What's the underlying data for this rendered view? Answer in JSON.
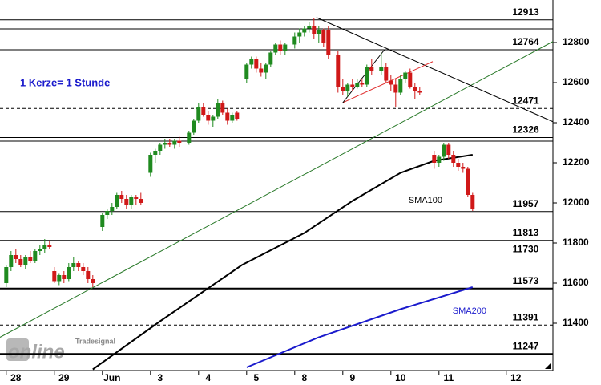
{
  "chart_data": {
    "type": "candlestick",
    "annotation": "1 Kerze= 1 Stunde",
    "watermark": [
      "Tradesignal",
      "online"
    ],
    "xlim": [
      -1.3,
      113.7
    ],
    "ylim": [
      11164,
      13012
    ],
    "xticks": [
      {
        "value": 0,
        "label": "28"
      },
      {
        "value": 10,
        "label": "29"
      },
      {
        "value": 20,
        "label": "Jun"
      },
      {
        "value": 30,
        "label": "3"
      },
      {
        "value": 40,
        "label": "4"
      },
      {
        "value": 50,
        "label": "5"
      },
      {
        "value": 60,
        "label": "8"
      },
      {
        "value": 70,
        "label": "9"
      },
      {
        "value": 80,
        "label": "10"
      },
      {
        "value": 90,
        "label": "11"
      },
      {
        "value": 104,
        "label": "12"
      }
    ],
    "yticks": [
      11400,
      11600,
      11800,
      12000,
      12200,
      12400,
      12600,
      12800
    ],
    "up_color": "#1f8a1f",
    "down_color": "#d01818",
    "x": [
      0,
      1,
      2,
      3,
      4,
      5,
      6,
      7,
      8,
      9,
      10,
      11,
      12,
      13,
      14,
      15,
      16,
      17,
      18,
      20,
      21,
      22,
      23,
      24,
      25,
      26,
      27,
      28,
      30,
      31,
      32,
      33,
      34,
      35,
      36,
      38,
      39,
      40,
      41,
      42,
      43,
      44,
      45,
      46,
      47,
      48,
      50,
      51,
      52,
      53,
      54,
      55,
      56,
      57,
      58,
      60,
      61,
      62,
      63,
      64,
      65,
      66,
      67,
      69,
      70,
      71,
      72,
      73,
      74,
      75,
      76,
      78,
      79,
      80,
      81,
      82,
      83,
      84,
      85,
      86,
      89,
      90,
      91,
      92,
      93,
      94,
      95,
      96,
      97
    ],
    "open": [
      11600,
      11680,
      11740,
      11720,
      11690,
      11730,
      11710,
      11760,
      11770,
      11790,
      11660,
      11610,
      11640,
      11620,
      11680,
      11700,
      11680,
      11660,
      11620,
      11880,
      11940,
      11960,
      11980,
      12040,
      12020,
      11990,
      12030,
      12020,
      12150,
      12240,
      12260,
      12290,
      12300,
      12290,
      12310,
      12300,
      12350,
      12410,
      12480,
      12440,
      12410,
      12430,
      12500,
      12450,
      12410,
      12450,
      12620,
      12690,
      12720,
      12670,
      12650,
      12690,
      12750,
      12790,
      12760,
      12790,
      12830,
      12850,
      12870,
      12880,
      12840,
      12860,
      12860,
      12740,
      12580,
      12560,
      12590,
      12580,
      12600,
      12590,
      12680,
      12660,
      12680,
      12610,
      12590,
      12550,
      12620,
      12650,
      12580,
      12560,
      12240,
      12200,
      12230,
      12290,
      12240,
      12200,
      12180,
      12170,
      12040
    ],
    "high": [
      11690,
      11760,
      11770,
      11740,
      11740,
      11760,
      11770,
      11790,
      11820,
      11810,
      11680,
      11650,
      11660,
      11700,
      11730,
      11710,
      11700,
      11680,
      11640,
      11950,
      11970,
      12000,
      12050,
      12060,
      12040,
      12040,
      12040,
      12050,
      12250,
      12270,
      12300,
      12320,
      12320,
      12320,
      12330,
      12360,
      12420,
      12500,
      12500,
      12460,
      12440,
      12520,
      12510,
      12470,
      12450,
      12460,
      12700,
      12730,
      12730,
      12700,
      12700,
      12760,
      12800,
      12810,
      12800,
      12850,
      12870,
      12880,
      12900,
      12920,
      12880,
      12870,
      12880,
      12760,
      12620,
      12600,
      12620,
      12620,
      12620,
      12690,
      12720,
      12750,
      12700,
      12640,
      12620,
      12640,
      12660,
      12670,
      12600,
      12580,
      12260,
      12240,
      12300,
      12300,
      12260,
      12220,
      12200,
      12180,
      12050
    ],
    "low": [
      11580,
      11660,
      11700,
      11680,
      11670,
      11700,
      11700,
      11740,
      11750,
      11770,
      11600,
      11590,
      11600,
      11610,
      11660,
      11660,
      11640,
      11600,
      11580,
      11860,
      11920,
      11940,
      11970,
      12000,
      11970,
      11970,
      11990,
      11990,
      12130,
      12200,
      12240,
      12270,
      12280,
      12270,
      12280,
      12290,
      12340,
      12400,
      12430,
      12390,
      12380,
      12420,
      12440,
      12390,
      12400,
      12410,
      12600,
      12670,
      12650,
      12630,
      12620,
      12680,
      12740,
      12740,
      12740,
      12770,
      12800,
      12830,
      12850,
      12820,
      12800,
      12780,
      12720,
      12550,
      12540,
      12530,
      12560,
      12570,
      12580,
      12580,
      12640,
      12640,
      12600,
      12560,
      12480,
      12540,
      12600,
      12570,
      12520,
      12540,
      12170,
      12180,
      12210,
      12220,
      12180,
      12160,
      12150,
      12030,
      11960
    ],
    "close": [
      11680,
      11740,
      11720,
      11690,
      11730,
      11710,
      11760,
      11770,
      11790,
      11780,
      11610,
      11640,
      11620,
      11680,
      11700,
      11680,
      11660,
      11620,
      11600,
      11940,
      11960,
      11980,
      12040,
      12020,
      11990,
      12030,
      12020,
      12000,
      12240,
      12260,
      12290,
      12300,
      12290,
      12310,
      12300,
      12350,
      12410,
      12480,
      12440,
      12410,
      12430,
      12500,
      12450,
      12410,
      12440,
      12420,
      12690,
      12720,
      12670,
      12650,
      12690,
      12750,
      12790,
      12760,
      12790,
      12830,
      12850,
      12870,
      12880,
      12840,
      12860,
      12800,
      12740,
      12580,
      12560,
      12590,
      12580,
      12600,
      12590,
      12680,
      12660,
      12680,
      12610,
      12590,
      12550,
      12620,
      12650,
      12580,
      12560,
      12550,
      12200,
      12230,
      12290,
      12240,
      12200,
      12180,
      12170,
      12040,
      11970
    ],
    "levels": [
      {
        "value": 12913,
        "style": "solid"
      },
      {
        "value": 12764,
        "style": "solid"
      },
      {
        "value": 12471,
        "style": "dashed"
      },
      {
        "value": 12326,
        "style": "solid"
      },
      {
        "value": 11957,
        "style": "solid"
      },
      {
        "value": 11813,
        "style": "solid"
      },
      {
        "value": 11730,
        "style": "dashed"
      },
      {
        "value": 11573,
        "style": "thick"
      },
      {
        "value": 11391,
        "style": "dashed"
      },
      {
        "value": 11247,
        "style": "thick"
      }
    ],
    "unlabeled_levels": [
      12868,
      12308
    ],
    "series": [
      {
        "name": "SMA100",
        "color": "#000000",
        "x": [
          18,
          32,
          49,
          62,
          72,
          82,
          89,
          97
        ],
        "values": [
          11170,
          11410,
          11690,
          11850,
          12010,
          12150,
          12210,
          12240
        ]
      },
      {
        "name": "SMA200",
        "color": "#1a1acc",
        "x": [
          50,
          65,
          82,
          97
        ],
        "values": [
          11180,
          11330,
          11470,
          11580
        ]
      }
    ],
    "trendlines": [
      {
        "color": "#2a7a2a",
        "x": [
          -1.3,
          113.7
        ],
        "values": [
          11330,
          12805
        ]
      },
      {
        "color": "#000000",
        "x": [
          64.5,
          113.7
        ],
        "values": [
          12925,
          12405
        ]
      },
      {
        "color": "#e03030",
        "x": [
          70,
          88.7
        ],
        "values": [
          12500,
          12705
        ]
      },
      {
        "color": "#000000",
        "x": [
          70,
          78.7
        ],
        "values": [
          12500,
          12765
        ]
      }
    ]
  }
}
